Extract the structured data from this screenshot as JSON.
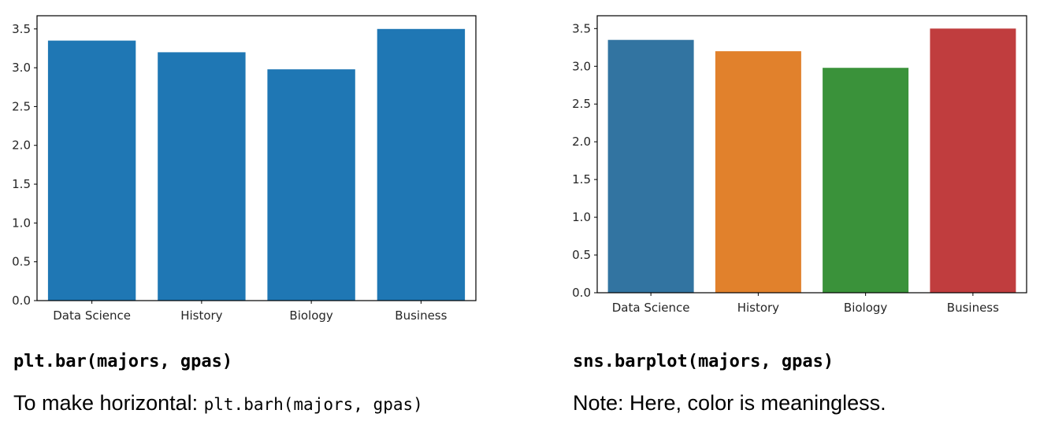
{
  "chart_data": [
    {
      "type": "bar",
      "categories": [
        "Data Science",
        "History",
        "Biology",
        "Business"
      ],
      "values": [
        3.35,
        3.2,
        2.98,
        3.5
      ],
      "colors": [
        "#1f77b4",
        "#1f77b4",
        "#1f77b4",
        "#1f77b4"
      ],
      "yticks": [
        "0.0",
        "0.5",
        "1.0",
        "1.5",
        "2.0",
        "2.5",
        "3.0",
        "3.5"
      ],
      "ylim": [
        0,
        3.67
      ],
      "title": "",
      "xlabel": "",
      "ylabel": "",
      "grid": false
    },
    {
      "type": "bar",
      "categories": [
        "Data Science",
        "History",
        "Biology",
        "Business"
      ],
      "values": [
        3.35,
        3.2,
        2.98,
        3.5
      ],
      "colors": [
        "#3274a1",
        "#e1812c",
        "#3a923a",
        "#c03d3e"
      ],
      "yticks": [
        "0.0",
        "0.5",
        "1.0",
        "1.5",
        "2.0",
        "2.5",
        "3.0",
        "3.5"
      ],
      "ylim": [
        0,
        3.67
      ],
      "title": "",
      "xlabel": "",
      "ylabel": "",
      "grid": false
    }
  ],
  "captions": {
    "left_code": "plt.bar(majors, gpas)",
    "left_note_prefix": "To make horizontal: ",
    "left_note_code": "plt.barh(majors, gpas)",
    "right_code": "sns.barplot(majors, gpas)",
    "right_note": "Note: Here, color is meaningless."
  }
}
